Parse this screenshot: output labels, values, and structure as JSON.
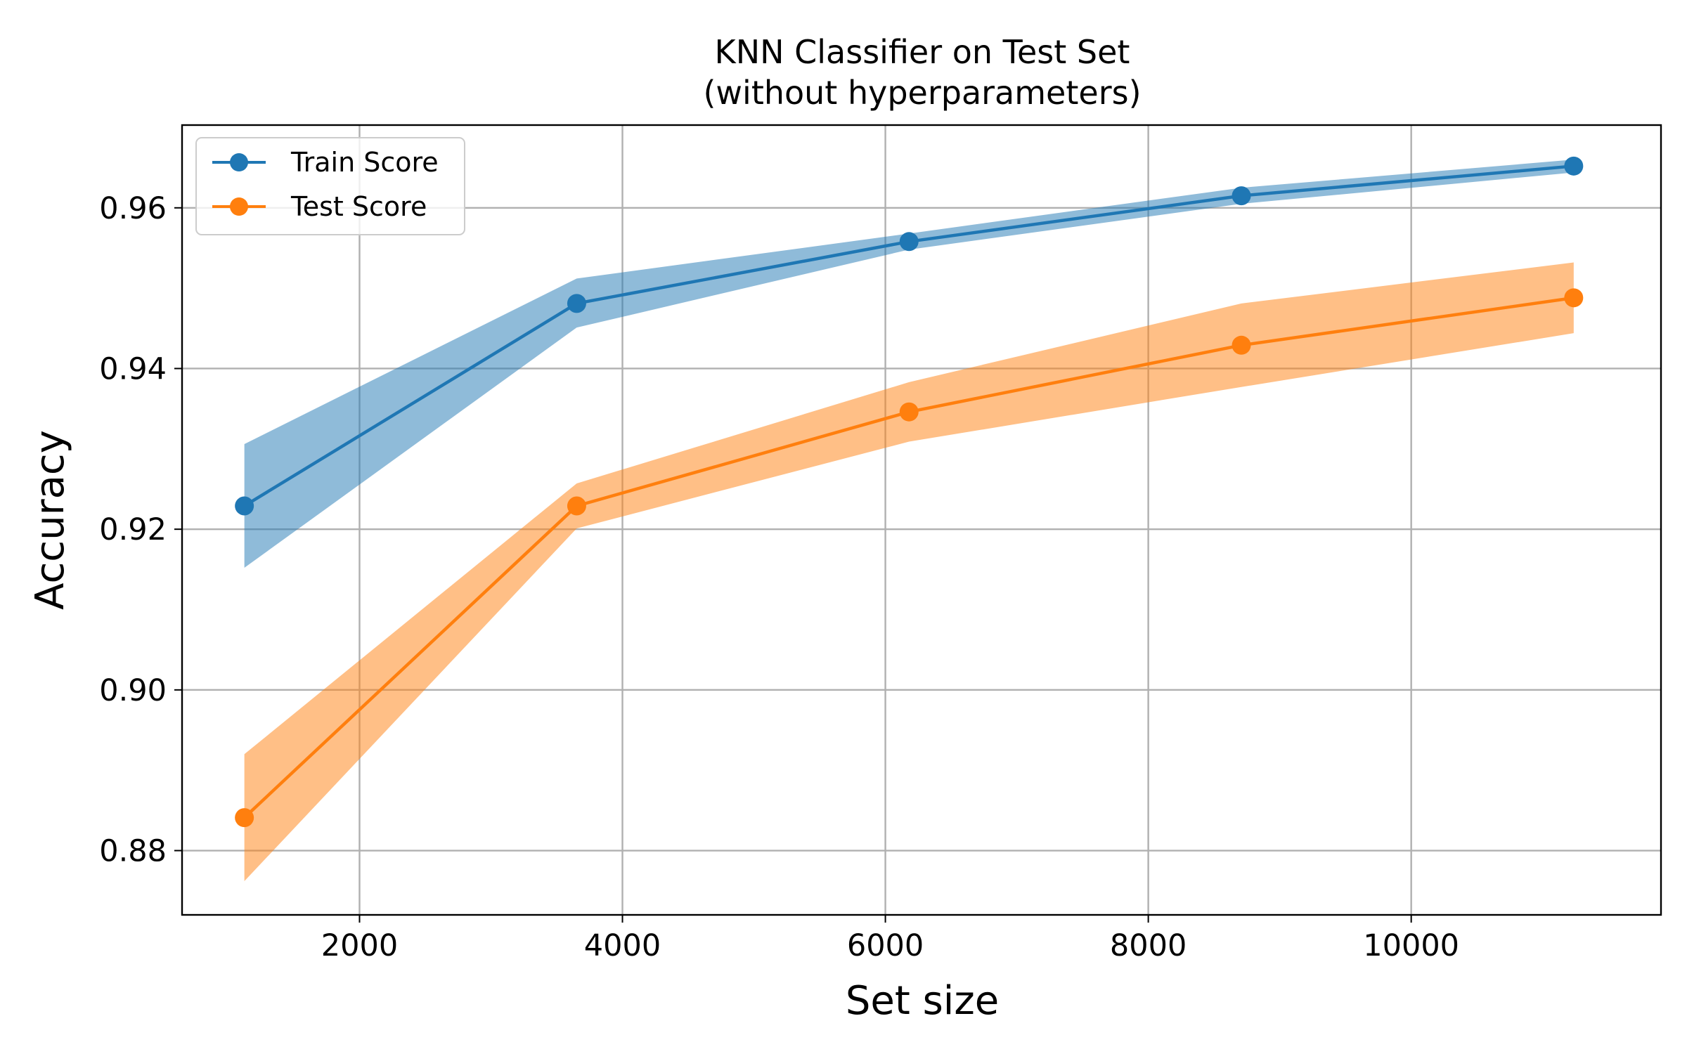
{
  "chart_data": {
    "type": "line",
    "title": [
      "KNN Classifier on Test Set",
      "(without hyperparameters)"
    ],
    "xlabel": "Set size",
    "ylabel": "Accuracy",
    "xlim": [
      650,
      11900
    ],
    "ylim": [
      0.872,
      0.9703
    ],
    "x_ticks": [
      2000,
      4000,
      6000,
      8000,
      10000
    ],
    "x_tick_labels": [
      "2000",
      "4000",
      "6000",
      "8000",
      "10000"
    ],
    "y_ticks": [
      0.88,
      0.9,
      0.92,
      0.94,
      0.96
    ],
    "y_tick_labels": [
      "0.88",
      "0.90",
      "0.92",
      "0.94",
      "0.96"
    ],
    "grid": true,
    "legend_position": "upper-left",
    "x": [
      1124,
      3652,
      6180,
      8708,
      11236
    ],
    "series": [
      {
        "name": "Train Score",
        "color": "#1f77b4",
        "values": [
          0.9229,
          0.9481,
          0.9558,
          0.9615,
          0.9652
        ],
        "band_lower": [
          0.9152,
          0.9451,
          0.9548,
          0.9605,
          0.9644
        ],
        "band_upper": [
          0.9306,
          0.9512,
          0.9568,
          0.9625,
          0.966
        ]
      },
      {
        "name": "Test Score",
        "color": "#ff7f0e",
        "values": [
          0.8841,
          0.9229,
          0.9346,
          0.9429,
          0.9488
        ],
        "band_lower": [
          0.8762,
          0.9201,
          0.9309,
          0.9377,
          0.9444
        ],
        "band_upper": [
          0.892,
          0.9257,
          0.9383,
          0.9481,
          0.9532
        ]
      }
    ]
  }
}
